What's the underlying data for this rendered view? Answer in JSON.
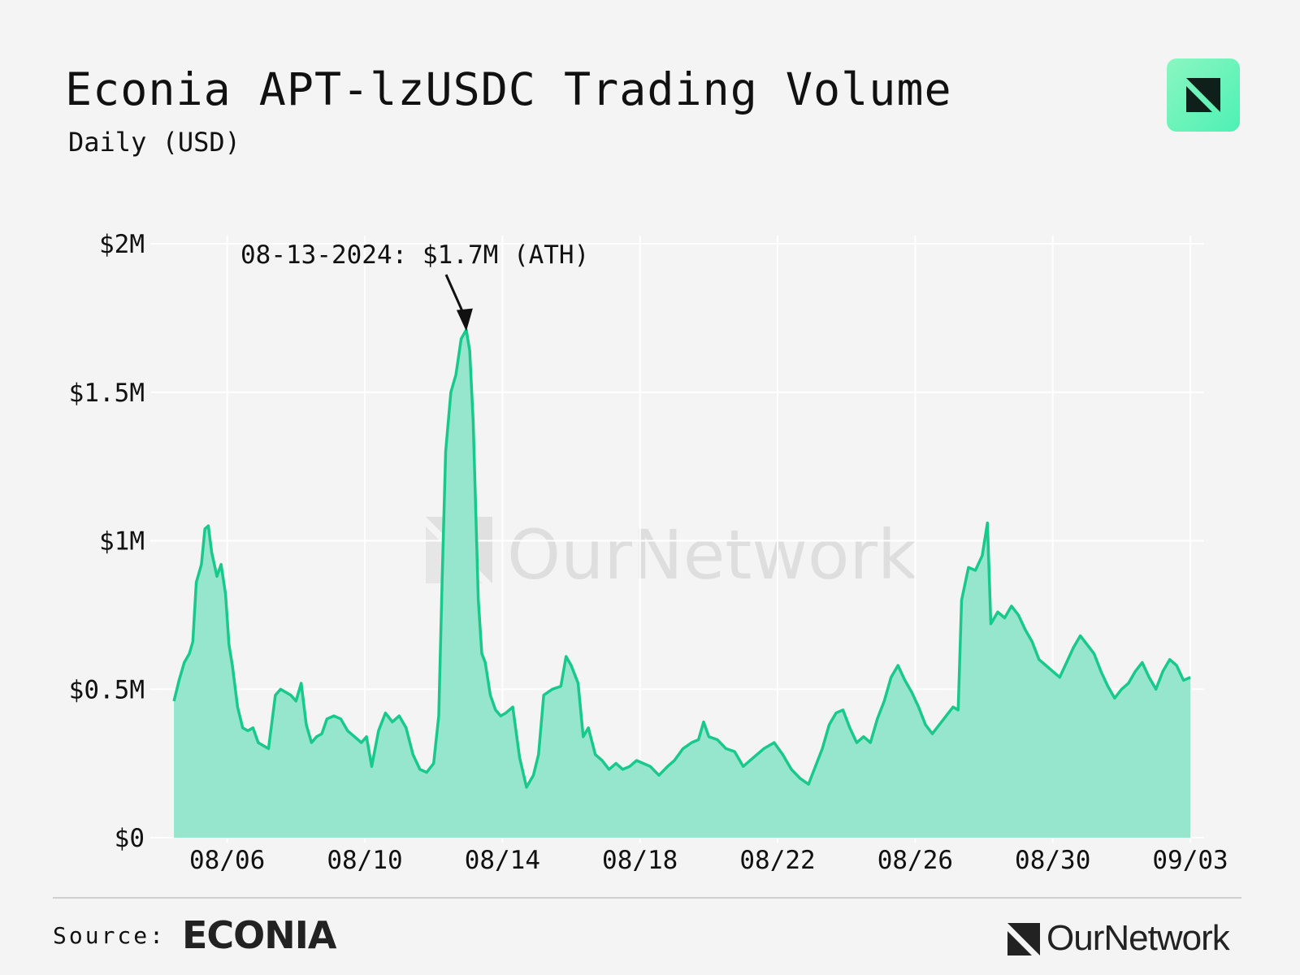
{
  "header": {
    "title": "Econia APT-lzUSDC Trading Volume",
    "subtitle": "Daily (USD)"
  },
  "annotation": {
    "text": "08-13-2024: $1.7M (ATH)",
    "x": "08/13",
    "y": 1700000
  },
  "watermark": {
    "text": "OurNetwork"
  },
  "footer": {
    "source_label": "Source:",
    "source_name": "ECONIA",
    "brand_name": "OurNetwork"
  },
  "colors": {
    "line": "#19c98c",
    "fill": "#94e4cc",
    "background": "#f4f4f4",
    "grid": "#ffffff"
  },
  "icons": {
    "top_right_logo": "ournetwork-logo-icon",
    "footer_logo": "ournetwork-logo-icon"
  },
  "chart_data": {
    "type": "area",
    "title": "Econia APT-lzUSDC Trading Volume",
    "subtitle": "Daily (USD)",
    "xlabel": "",
    "ylabel": "",
    "ylim": [
      0,
      2000000
    ],
    "yticks": [
      {
        "value": 0,
        "label": "$0"
      },
      {
        "value": 500000,
        "label": "$0.5M"
      },
      {
        "value": 1000000,
        "label": "$1M"
      },
      {
        "value": 1500000,
        "label": "$1.5M"
      },
      {
        "value": 2000000,
        "label": "$2M"
      }
    ],
    "xticks": [
      {
        "value": 6,
        "label": "08/06"
      },
      {
        "value": 10,
        "label": "08/10"
      },
      {
        "value": 14,
        "label": "08/14"
      },
      {
        "value": 18,
        "label": "08/18"
      },
      {
        "value": 22,
        "label": "08/22"
      },
      {
        "value": 26,
        "label": "08/26"
      },
      {
        "value": 30,
        "label": "08/30"
      },
      {
        "value": 34,
        "label": "09/03"
      }
    ],
    "x_unit": "day of August 2024 (x=32 is 09/01)",
    "grid": true,
    "series": [
      {
        "points": [
          [
            4.45,
            460000
          ],
          [
            4.6,
            530000
          ],
          [
            4.75,
            590000
          ],
          [
            4.9,
            620000
          ],
          [
            5.0,
            660000
          ],
          [
            5.1,
            860000
          ],
          [
            5.25,
            920000
          ],
          [
            5.35,
            1040000
          ],
          [
            5.45,
            1050000
          ],
          [
            5.55,
            960000
          ],
          [
            5.7,
            880000
          ],
          [
            5.82,
            920000
          ],
          [
            5.95,
            820000
          ],
          [
            6.05,
            650000
          ],
          [
            6.15,
            580000
          ],
          [
            6.3,
            440000
          ],
          [
            6.45,
            370000
          ],
          [
            6.6,
            360000
          ],
          [
            6.75,
            370000
          ],
          [
            6.9,
            320000
          ],
          [
            7.05,
            310000
          ],
          [
            7.2,
            300000
          ],
          [
            7.4,
            480000
          ],
          [
            7.55,
            500000
          ],
          [
            7.7,
            490000
          ],
          [
            7.85,
            480000
          ],
          [
            8.0,
            460000
          ],
          [
            8.15,
            520000
          ],
          [
            8.3,
            380000
          ],
          [
            8.45,
            320000
          ],
          [
            8.6,
            340000
          ],
          [
            8.75,
            350000
          ],
          [
            8.9,
            400000
          ],
          [
            9.1,
            410000
          ],
          [
            9.3,
            400000
          ],
          [
            9.5,
            360000
          ],
          [
            9.7,
            340000
          ],
          [
            9.9,
            320000
          ],
          [
            10.05,
            340000
          ],
          [
            10.2,
            240000
          ],
          [
            10.4,
            360000
          ],
          [
            10.6,
            420000
          ],
          [
            10.8,
            390000
          ],
          [
            11.0,
            410000
          ],
          [
            11.2,
            370000
          ],
          [
            11.4,
            280000
          ],
          [
            11.6,
            230000
          ],
          [
            11.8,
            220000
          ],
          [
            12.0,
            250000
          ],
          [
            12.15,
            410000
          ],
          [
            12.25,
            880000
          ],
          [
            12.35,
            1300000
          ],
          [
            12.5,
            1500000
          ],
          [
            12.65,
            1560000
          ],
          [
            12.8,
            1680000
          ],
          [
            12.95,
            1710000
          ],
          [
            13.05,
            1640000
          ],
          [
            13.15,
            1400000
          ],
          [
            13.3,
            800000
          ],
          [
            13.4,
            620000
          ],
          [
            13.5,
            590000
          ],
          [
            13.65,
            480000
          ],
          [
            13.8,
            430000
          ],
          [
            13.95,
            410000
          ],
          [
            14.1,
            420000
          ],
          [
            14.3,
            440000
          ],
          [
            14.5,
            270000
          ],
          [
            14.7,
            170000
          ],
          [
            14.9,
            210000
          ],
          [
            15.05,
            280000
          ],
          [
            15.2,
            480000
          ],
          [
            15.45,
            500000
          ],
          [
            15.7,
            510000
          ],
          [
            15.85,
            610000
          ],
          [
            16.0,
            580000
          ],
          [
            16.2,
            520000
          ],
          [
            16.35,
            340000
          ],
          [
            16.5,
            370000
          ],
          [
            16.7,
            280000
          ],
          [
            16.9,
            260000
          ],
          [
            17.1,
            230000
          ],
          [
            17.3,
            250000
          ],
          [
            17.5,
            230000
          ],
          [
            17.7,
            240000
          ],
          [
            17.9,
            260000
          ],
          [
            18.1,
            250000
          ],
          [
            18.3,
            240000
          ],
          [
            18.55,
            210000
          ],
          [
            18.8,
            240000
          ],
          [
            19.0,
            260000
          ],
          [
            19.25,
            300000
          ],
          [
            19.5,
            320000
          ],
          [
            19.7,
            330000
          ],
          [
            19.85,
            390000
          ],
          [
            20.0,
            340000
          ],
          [
            20.25,
            330000
          ],
          [
            20.5,
            300000
          ],
          [
            20.75,
            290000
          ],
          [
            21.0,
            240000
          ],
          [
            21.3,
            270000
          ],
          [
            21.6,
            300000
          ],
          [
            21.9,
            320000
          ],
          [
            22.15,
            280000
          ],
          [
            22.4,
            230000
          ],
          [
            22.65,
            200000
          ],
          [
            22.9,
            180000
          ],
          [
            23.1,
            240000
          ],
          [
            23.3,
            300000
          ],
          [
            23.5,
            380000
          ],
          [
            23.7,
            420000
          ],
          [
            23.9,
            430000
          ],
          [
            24.1,
            370000
          ],
          [
            24.3,
            320000
          ],
          [
            24.5,
            340000
          ],
          [
            24.7,
            320000
          ],
          [
            24.9,
            400000
          ],
          [
            25.1,
            460000
          ],
          [
            25.3,
            540000
          ],
          [
            25.5,
            580000
          ],
          [
            25.7,
            530000
          ],
          [
            25.9,
            490000
          ],
          [
            26.1,
            440000
          ],
          [
            26.3,
            380000
          ],
          [
            26.5,
            350000
          ],
          [
            26.7,
            380000
          ],
          [
            26.9,
            410000
          ],
          [
            27.1,
            440000
          ],
          [
            27.25,
            430000
          ],
          [
            27.35,
            800000
          ],
          [
            27.55,
            910000
          ],
          [
            27.75,
            900000
          ],
          [
            27.95,
            950000
          ],
          [
            28.1,
            1060000
          ],
          [
            28.2,
            720000
          ],
          [
            28.4,
            760000
          ],
          [
            28.6,
            740000
          ],
          [
            28.8,
            780000
          ],
          [
            29.0,
            750000
          ],
          [
            29.2,
            700000
          ],
          [
            29.4,
            660000
          ],
          [
            29.6,
            600000
          ],
          [
            29.8,
            580000
          ],
          [
            30.0,
            560000
          ],
          [
            30.2,
            540000
          ],
          [
            30.4,
            590000
          ],
          [
            30.6,
            640000
          ],
          [
            30.8,
            680000
          ],
          [
            31.0,
            650000
          ],
          [
            31.2,
            620000
          ],
          [
            31.4,
            560000
          ],
          [
            31.6,
            510000
          ],
          [
            31.8,
            470000
          ],
          [
            32.0,
            500000
          ],
          [
            32.2,
            520000
          ],
          [
            32.4,
            560000
          ],
          [
            32.6,
            590000
          ],
          [
            32.8,
            540000
          ],
          [
            33.0,
            500000
          ],
          [
            33.2,
            560000
          ],
          [
            33.4,
            600000
          ],
          [
            33.6,
            580000
          ],
          [
            33.8,
            530000
          ],
          [
            34.0,
            540000
          ]
        ]
      }
    ]
  }
}
